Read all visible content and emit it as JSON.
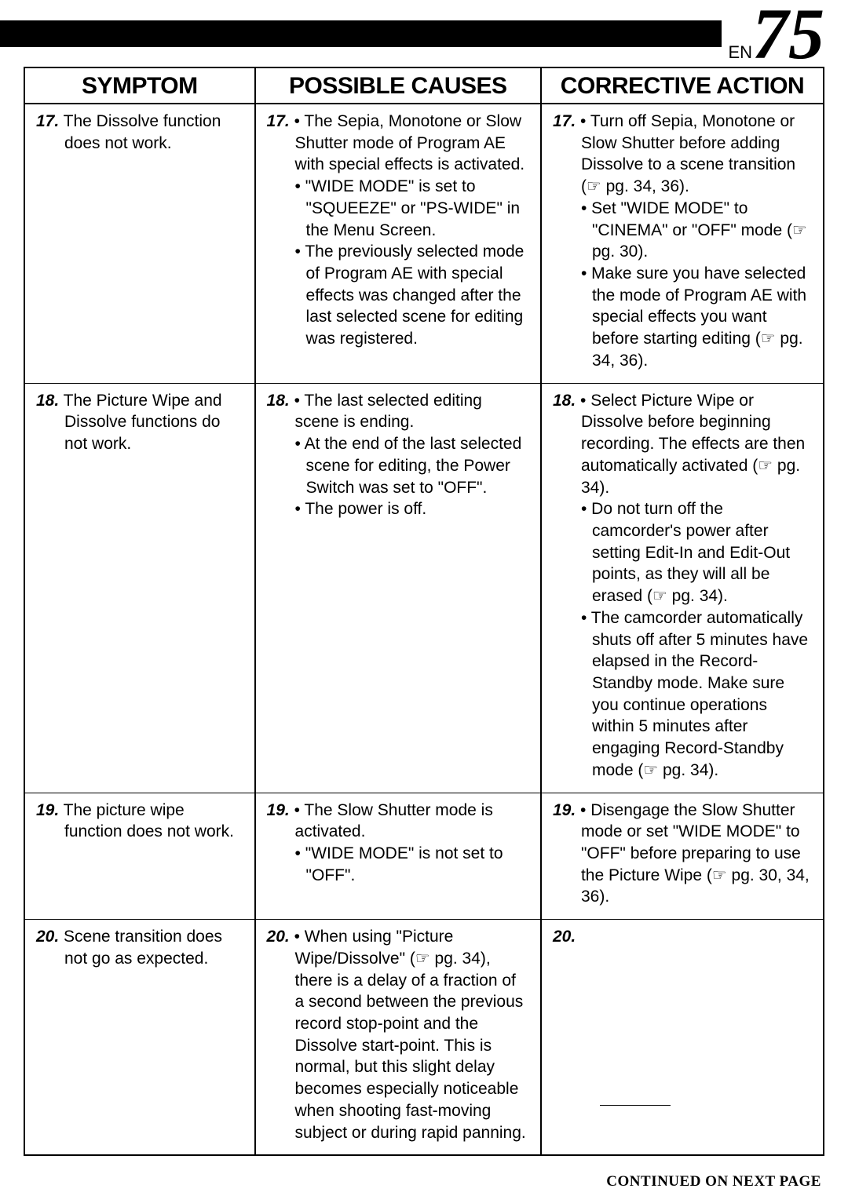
{
  "page": {
    "lang": "EN",
    "number": "75"
  },
  "headers": {
    "symptom": "SYMPTOM",
    "causes": "POSSIBLE CAUSES",
    "action": "CORRECTIVE ACTION"
  },
  "rows": [
    {
      "num": "17.",
      "symptom": "The Dissolve function does not work.",
      "causes": [
        "The Sepia, Monotone or Slow Shutter mode of Program AE with special effects is activated.",
        "\"WIDE MODE\" is set to \"SQUEEZE\" or \"PS-WIDE\" in the Menu Screen.",
        "The previously selected mode of Program AE with special effects was changed after the last selected scene for editing was registered."
      ],
      "actions": [
        "Turn off Sepia, Monotone or Slow Shutter before adding Dissolve to a scene transition (☞ pg. 34, 36).",
        "Set \"WIDE MODE\" to \"CINEMA\" or \"OFF\" mode (☞ pg. 30).",
        "Make sure you have selected the mode of Program AE with special effects you want before starting editing (☞ pg. 34, 36)."
      ]
    },
    {
      "num": "18.",
      "symptom": "The Picture Wipe and Dissolve functions do not work.",
      "causes": [
        "The last selected editing scene is ending.",
        "At the end of the last selected scene for editing, the Power Switch was set to \"OFF\".",
        "The power is off."
      ],
      "actions": [
        "Select Picture Wipe or Dissolve before beginning recording. The effects are then automatically activated (☞ pg. 34).",
        "Do not turn off the camcorder's power after setting Edit-In and Edit-Out points, as they will all be erased (☞ pg. 34).",
        "The camcorder automatically shuts off after 5 minutes have elapsed in the Record-Standby mode. Make sure you continue operations within 5 minutes after engaging Record-Standby mode (☞ pg. 34)."
      ]
    },
    {
      "num": "19.",
      "symptom": "The picture wipe function does not work.",
      "causes": [
        "The Slow Shutter mode is activated.",
        "\"WIDE MODE\" is not set to \"OFF\"."
      ],
      "actions": [
        "Disengage the Slow Shutter mode or set \"WIDE MODE\" to \"OFF\" before preparing to use the Picture Wipe (☞ pg. 30, 34, 36)."
      ]
    },
    {
      "num": "20.",
      "symptom": "Scene transition does not go as expected.",
      "causes": [
        "When using \"Picture Wipe/Dissolve\" (☞ pg. 34), there is a delay of a fraction of a second between the previous record stop-point and the Dissolve start-point. This is normal, but this slight delay becomes especially noticeable when shooting fast-moving subject or during rapid panning."
      ],
      "actions_empty": true
    }
  ],
  "footer": "CONTINUED ON NEXT PAGE"
}
